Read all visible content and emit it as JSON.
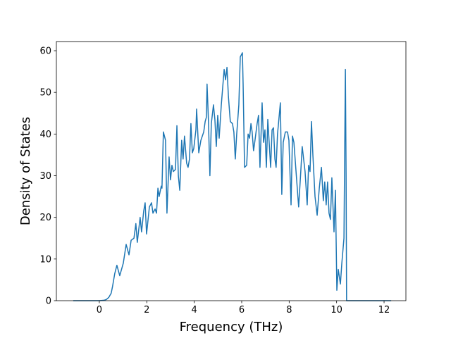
{
  "chart_data": {
    "type": "line",
    "xlabel": "Frequency (THz)",
    "ylabel": "Density of States",
    "xlim": [
      -1.81,
      12.92
    ],
    "ylim": [
      0,
      62.2
    ],
    "xticks": [
      0,
      2,
      4,
      6,
      8,
      10,
      12
    ],
    "yticks": [
      0,
      10,
      20,
      30,
      40,
      50,
      60
    ],
    "series": [
      {
        "color": "#1f77b4",
        "x": [
          -1.1,
          0,
          0.2,
          0.3,
          0.4,
          0.5,
          0.56,
          0.65,
          0.74,
          0.86,
          1.01,
          1.13,
          1.25,
          1.34,
          1.46,
          1.54,
          1.6,
          1.72,
          1.78,
          1.87,
          1.93,
          1.99,
          2.11,
          2.2,
          2.26,
          2.35,
          2.41,
          2.47,
          2.52,
          2.61,
          2.64,
          2.7,
          2.79,
          2.85,
          2.94,
          3.0,
          3.06,
          3.12,
          3.21,
          3.27,
          3.33,
          3.39,
          3.47,
          3.53,
          3.59,
          3.68,
          3.74,
          3.8,
          3.86,
          3.92,
          3.98,
          4.07,
          4.1,
          4.19,
          4.28,
          4.4,
          4.46,
          4.51,
          4.54,
          4.6,
          4.66,
          4.72,
          4.81,
          4.87,
          4.93,
          4.99,
          5.05,
          5.14,
          5.26,
          5.32,
          5.38,
          5.44,
          5.52,
          5.61,
          5.67,
          5.73,
          5.79,
          5.88,
          5.94,
          6.03,
          6.06,
          6.12,
          6.21,
          6.27,
          6.33,
          6.39,
          6.44,
          6.5,
          6.56,
          6.65,
          6.71,
          6.77,
          6.86,
          6.92,
          6.98,
          7.04,
          7.1,
          7.22,
          7.28,
          7.34,
          7.4,
          7.45,
          7.51,
          7.63,
          7.69,
          7.75,
          7.84,
          7.93,
          7.99,
          8.08,
          8.14,
          8.2,
          8.29,
          8.4,
          8.49,
          8.55,
          8.67,
          8.76,
          8.82,
          8.88,
          8.94,
          9.0,
          9.09,
          9.18,
          9.27,
          9.36,
          9.44,
          9.5,
          9.56,
          9.62,
          9.68,
          9.74,
          9.8,
          9.89,
          9.95,
          10.01,
          10.07,
          10.16,
          10.22,
          10.31,
          10.37,
          10.4,
          10.42,
          12.3
        ],
        "values": [
          0,
          0,
          0.1,
          0.3,
          0.8,
          1.8,
          3.5,
          6.5,
          8.5,
          6,
          9,
          13.5,
          11,
          14.5,
          15,
          18.5,
          14,
          20,
          16.5,
          21.5,
          23.5,
          16,
          22.5,
          23.5,
          21,
          22,
          21,
          27,
          25,
          27.5,
          27,
          40.5,
          38.5,
          21,
          34.5,
          29,
          32.5,
          31,
          31.5,
          42,
          30,
          26.5,
          38.5,
          34,
          39.5,
          33,
          32,
          34,
          42.5,
          35.5,
          36.5,
          41,
          46,
          35.5,
          38.5,
          40.5,
          43,
          44,
          52,
          43,
          30,
          42.5,
          47,
          43.5,
          37,
          44.5,
          39,
          47,
          55.5,
          53,
          56,
          49,
          43,
          42.5,
          40.5,
          34,
          40,
          47,
          58.5,
          59.5,
          52,
          32,
          32.5,
          40,
          39,
          42.5,
          40.5,
          36,
          38.5,
          42.5,
          44.5,
          32,
          47.5,
          38,
          41,
          32,
          43.5,
          32,
          41,
          41.5,
          34,
          32,
          40,
          47.5,
          25.5,
          38,
          40.5,
          40.5,
          38.5,
          23,
          39.5,
          38,
          31,
          22.5,
          31,
          37,
          31,
          23,
          32.5,
          31,
          43,
          35,
          25,
          20.5,
          27,
          32,
          24,
          28.5,
          23,
          28.5,
          21,
          19.5,
          29.5,
          16.5,
          26.5,
          2.5,
          7.5,
          4,
          9,
          15,
          55.5,
          30,
          0,
          0
        ]
      }
    ]
  }
}
